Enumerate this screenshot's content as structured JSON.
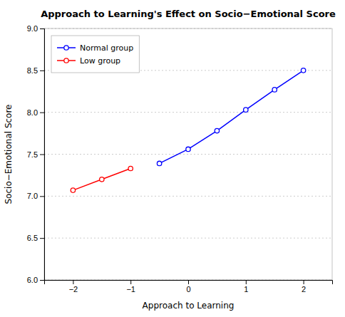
{
  "chart_data": {
    "type": "line",
    "title": "Approach to Learning's Effect on Socio−Emotional Score",
    "x_label": "Approach to Learning",
    "y_label": "Socio−Emotional Score",
    "xlim": [
      -2.5,
      2.5
    ],
    "ylim": [
      6.0,
      9.0
    ],
    "xticks": [
      {
        "value": -2,
        "label": "−2"
      },
      {
        "value": -1,
        "label": "−1"
      },
      0,
      1,
      2
    ],
    "yticks": [
      {
        "value": 6.0,
        "label": "6.0"
      },
      6.5,
      {
        "value": 7.0,
        "label": "7.0"
      },
      7.5,
      {
        "value": 8.0,
        "label": "8.0"
      },
      8.5,
      {
        "value": 9.0,
        "label": "9.0"
      }
    ],
    "grid": "y",
    "legend": "upper left",
    "series": [
      {
        "name": "Normal group",
        "color": "#0000FF",
        "marker": "circle",
        "line_style": "solid",
        "x": [
          -0.5,
          0.0,
          0.5,
          1.0,
          1.5,
          2.0
        ],
        "values": [
          7.39,
          7.56,
          7.78,
          8.03,
          8.27,
          8.5
        ]
      },
      {
        "name": "Low group",
        "color": "#FF0000",
        "marker": "circle",
        "line_style": "solid",
        "x": [
          -2.0,
          -1.5,
          -1.0
        ],
        "values": [
          7.07,
          7.2,
          7.33
        ]
      }
    ]
  }
}
